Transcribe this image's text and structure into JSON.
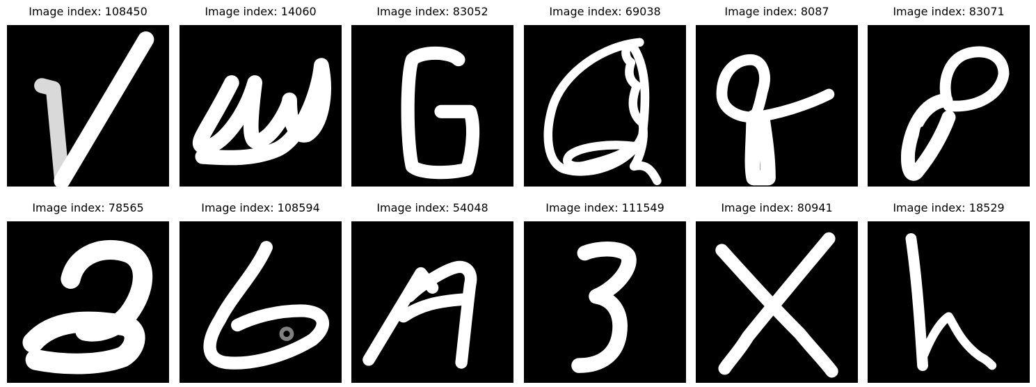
{
  "figure": {
    "background": "#ffffff",
    "image_background": "#000000",
    "glyph_color": "#ffffff",
    "panels": [
      {
        "title": "Image index: 108450",
        "glyph": "V"
      },
      {
        "title": "Image index: 14060",
        "glyph": "w"
      },
      {
        "title": "Image index: 83052",
        "glyph": "G"
      },
      {
        "title": "Image index: 69038",
        "glyph": "Q"
      },
      {
        "title": "Image index: 8087",
        "glyph": "f"
      },
      {
        "title": "Image index: 83071",
        "glyph": "P"
      },
      {
        "title": "Image index: 78565",
        "glyph": "2"
      },
      {
        "title": "Image index: 108594",
        "glyph": "b"
      },
      {
        "title": "Image index: 54048",
        "glyph": "A"
      },
      {
        "title": "Image index: 111549",
        "glyph": "3"
      },
      {
        "title": "Image index: 80941",
        "glyph": "X"
      },
      {
        "title": "Image index: 18529",
        "glyph": "h"
      }
    ]
  }
}
